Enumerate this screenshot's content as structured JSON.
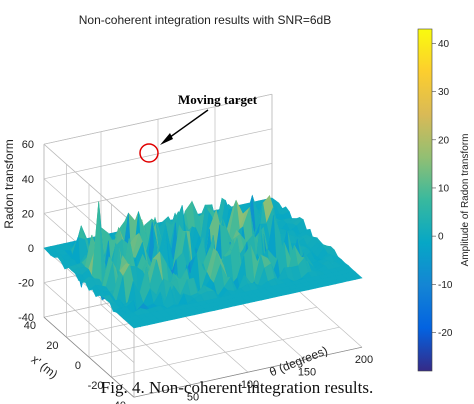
{
  "caption": "Fig. 4.   Non-coherent integration results.",
  "chart_data": {
    "type": "surface",
    "title": "Non-coherent integration results with SNR=6dB",
    "xlabel": "θ (degrees)",
    "ylabel": "x' (m)",
    "zlabel": "Radon transform",
    "xticks": [
      0,
      50,
      100,
      150,
      200
    ],
    "yticks": [
      -40,
      -20,
      0,
      20,
      40
    ],
    "zticks": [
      -40,
      -20,
      0,
      20,
      40,
      60
    ],
    "xlim": [
      0,
      200
    ],
    "ylim": [
      -40,
      40
    ],
    "zlim": [
      -40,
      60
    ],
    "colorbar": {
      "label": "Amplitude of Radon transform",
      "ticks": [
        -20,
        -10,
        0,
        10,
        20,
        30,
        40
      ],
      "range": [
        -28,
        43
      ],
      "colormap": "parula"
    },
    "peak": {
      "theta": 20,
      "x": 10,
      "value": 42
    },
    "annotation": "Moving target",
    "grid": true
  },
  "colors": {
    "parula": [
      "#352a87",
      "#0363e1",
      "#1485d4",
      "#06a7c6",
      "#38b99e",
      "#92bf73",
      "#d9ba56",
      "#fcce2e",
      "#f9fb0e"
    ],
    "annotation_circle": "#e00000"
  }
}
